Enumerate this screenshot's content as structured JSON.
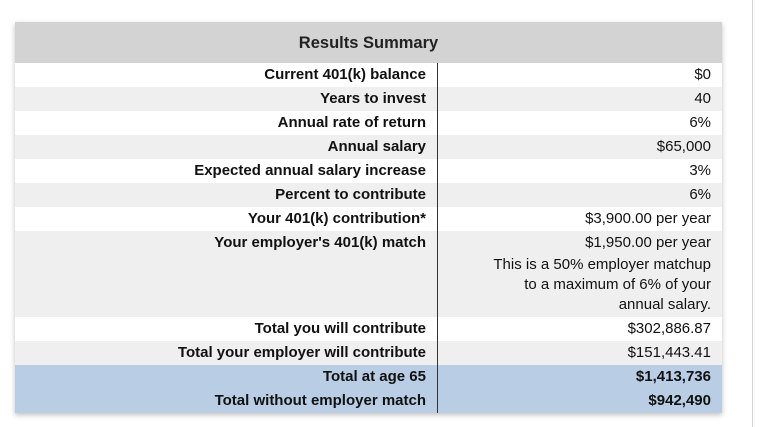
{
  "summary": {
    "title": "Results Summary",
    "rows": [
      {
        "label": "Current 401(k) balance",
        "value": "$0"
      },
      {
        "label": "Years to invest",
        "value": "40"
      },
      {
        "label": "Annual rate of return",
        "value": "6%"
      },
      {
        "label": "Annual salary",
        "value": "$65,000"
      },
      {
        "label": "Expected annual salary increase",
        "value": "3%"
      },
      {
        "label": "Percent to contribute",
        "value": "6%"
      },
      {
        "label": "Your 401(k) contribution*",
        "value": "$3,900.00 per year"
      },
      {
        "label": "Your employer's 401(k) match",
        "value": "$1,950.00 per year",
        "note_lines": [
          "This is a 50% employer matchup",
          "to a maximum of 6% of your",
          "annual salary."
        ]
      },
      {
        "label": "Total you will contribute",
        "value": "$302,886.87"
      },
      {
        "label": "Total your employer will contribute",
        "value": "$151,443.41"
      }
    ],
    "totals": [
      {
        "label": "Total at age 65",
        "value": "$1,413,736"
      },
      {
        "label": "Total without employer match",
        "value": "$942,490"
      }
    ]
  },
  "colors": {
    "header_bg": "#d3d3d3",
    "row_alt_bg": "#efefef",
    "totals_bg": "#b9cde5"
  }
}
